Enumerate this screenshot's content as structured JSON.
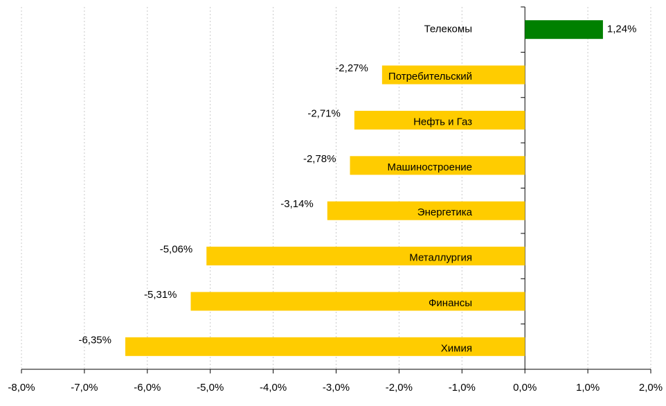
{
  "chart_data": {
    "type": "bar",
    "orientation": "horizontal",
    "categories": [
      "Телекомы",
      "Потребительский",
      "Нефть и Газ",
      "Машиностроение",
      "Энергетика",
      "Металлургия",
      "Финансы",
      "Химия"
    ],
    "values": [
      1.24,
      -2.27,
      -2.71,
      -2.78,
      -3.14,
      -5.06,
      -5.31,
      -6.35
    ],
    "value_labels": [
      "1,24%",
      "-2,27%",
      "-2,71%",
      "-2,78%",
      "-3,14%",
      "-5,06%",
      "-5,31%",
      "-6,35%"
    ],
    "colors": [
      "#008000",
      "#ffcc00",
      "#ffcc00",
      "#ffcc00",
      "#ffcc00",
      "#ffcc00",
      "#ffcc00",
      "#ffcc00"
    ],
    "xlim": [
      -8,
      2
    ],
    "xticks": [
      {
        "value": -8,
        "label": "-8,0%"
      },
      {
        "value": -7,
        "label": "-7,0%"
      },
      {
        "value": -6,
        "label": "-6,0%"
      },
      {
        "value": -5,
        "label": "-5,0%"
      },
      {
        "value": -4,
        "label": "-4,0%"
      },
      {
        "value": -3,
        "label": "-3,0%"
      },
      {
        "value": -2,
        "label": "-2,0%"
      },
      {
        "value": -1,
        "label": "-1,0%"
      },
      {
        "value": 0,
        "label": "0,0%"
      },
      {
        "value": 1,
        "label": "1,0%"
      },
      {
        "value": 2,
        "label": "2,0%"
      }
    ],
    "grid": true
  }
}
